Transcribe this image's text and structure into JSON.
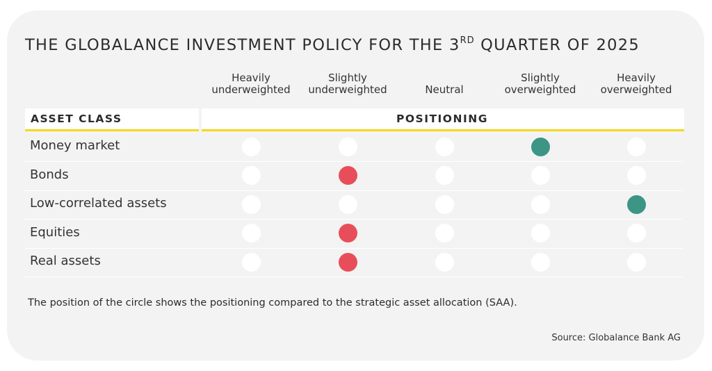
{
  "title": {
    "main": "THE GLOBALANCE INVESTMENT POLICY FOR THE 3",
    "sup": "RD",
    "tail": " QUARTER OF 2025"
  },
  "header": {
    "asset_class": "ASSET CLASS",
    "positioning": "POSITIONING"
  },
  "colors": {
    "underweight": "#e84e5a",
    "overweight": "#3d9585",
    "neutral_dot": "#ffffff",
    "accent_line": "#f5d81c",
    "card_bg": "#f3f3f3"
  },
  "chart_data": {
    "type": "table",
    "columns": [
      "Heavily\nunderweighted",
      "Slightly\nunderweighted",
      "Neutral",
      "Slightly\noverweighted",
      "Heavily\noverweighted"
    ],
    "rows": [
      {
        "asset": "Money market",
        "position": 3
      },
      {
        "asset": "Bonds",
        "position": 1
      },
      {
        "asset": "Low-correlated assets",
        "position": 4
      },
      {
        "asset": "Equities",
        "position": 1
      },
      {
        "asset": "Real assets",
        "position": 1
      }
    ]
  },
  "note": "The position of the circle shows the positioning compared to the strategic asset allocation (SAA).",
  "source": "Source: Globalance Bank AG"
}
